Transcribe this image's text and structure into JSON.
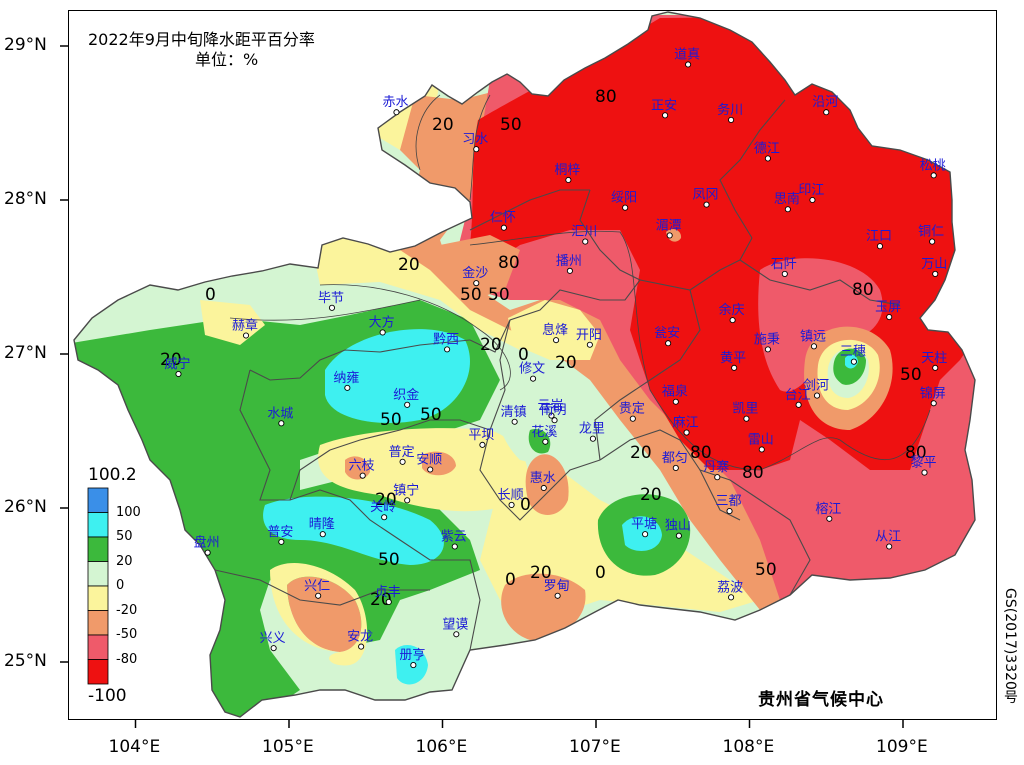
{
  "title": "2022年9月中旬降水距平百分率",
  "unit": "单位：%",
  "organization": "贵州省气候中心",
  "approval_number": "GS(2017)3320号",
  "lat_labels": [
    "29°N",
    "28°N",
    "27°N",
    "26°N",
    "25°N"
  ],
  "lon_labels": [
    "104°E",
    "105°E",
    "106°E",
    "107°E",
    "108°E",
    "109°E"
  ],
  "legend": {
    "max_label": "100.2",
    "min_label": "-100",
    "bins": [
      {
        "label": "100",
        "color": "#3a8fe8"
      },
      {
        "label": "50",
        "color": "#3ef0f0"
      },
      {
        "label": "20",
        "color": "#3cb93c"
      },
      {
        "label": "0",
        "color": "#d4f5d2"
      },
      {
        "label": "-20",
        "color": "#fbf49c"
      },
      {
        "label": "-50",
        "color": "#f09a6a"
      },
      {
        "label": "-80",
        "color": "#ef5a6a"
      },
      {
        "label": "",
        "color": "#ee1111"
      }
    ]
  },
  "colors": {
    "c_green": "#3cb93c",
    "c_cyan": "#3ef0f0",
    "c_lightgreen": "#d4f5d2",
    "c_yellow": "#fbf49c",
    "c_orange": "#f09a6a",
    "c_pink": "#ef5a6a",
    "c_red": "#ee1111",
    "c_boundary": "#4a4a4a"
  },
  "cities": [
    {
      "name": "赤水",
      "lon": 105.7,
      "lat": 28.57
    },
    {
      "name": "习水",
      "lon": 106.22,
      "lat": 28.33
    },
    {
      "name": "道真",
      "lon": 107.6,
      "lat": 28.88
    },
    {
      "name": "正安",
      "lon": 107.45,
      "lat": 28.55
    },
    {
      "name": "务川",
      "lon": 107.88,
      "lat": 28.52
    },
    {
      "name": "沿河",
      "lon": 108.5,
      "lat": 28.57
    },
    {
      "name": "桐梓",
      "lon": 106.82,
      "lat": 28.13
    },
    {
      "name": "绥阳",
      "lon": 107.19,
      "lat": 27.95
    },
    {
      "name": "凤冈",
      "lon": 107.72,
      "lat": 27.97
    },
    {
      "name": "德江",
      "lon": 108.12,
      "lat": 28.27
    },
    {
      "name": "印江",
      "lon": 108.41,
      "lat": 28.0
    },
    {
      "name": "思南",
      "lon": 108.25,
      "lat": 27.94
    },
    {
      "name": "松桃",
      "lon": 109.2,
      "lat": 28.16
    },
    {
      "name": "仁怀",
      "lon": 106.4,
      "lat": 27.82
    },
    {
      "name": "汇川",
      "lon": 106.93,
      "lat": 27.73
    },
    {
      "name": "湄潭",
      "lon": 107.48,
      "lat": 27.77
    },
    {
      "name": "江口",
      "lon": 108.85,
      "lat": 27.7
    },
    {
      "name": "铜仁",
      "lon": 109.19,
      "lat": 27.73
    },
    {
      "name": "金沙",
      "lon": 106.22,
      "lat": 27.46
    },
    {
      "name": "播州",
      "lon": 106.83,
      "lat": 27.54
    },
    {
      "name": "石阡",
      "lon": 108.23,
      "lat": 27.52
    },
    {
      "name": "万山",
      "lon": 109.21,
      "lat": 27.52
    },
    {
      "name": "毕节",
      "lon": 105.28,
      "lat": 27.3
    },
    {
      "name": "大方",
      "lon": 105.61,
      "lat": 27.14
    },
    {
      "name": "黔西",
      "lon": 106.03,
      "lat": 27.03
    },
    {
      "name": "息烽",
      "lon": 106.74,
      "lat": 27.09
    },
    {
      "name": "开阳",
      "lon": 106.96,
      "lat": 27.06
    },
    {
      "name": "余庆",
      "lon": 107.89,
      "lat": 27.22
    },
    {
      "name": "瓮安",
      "lon": 107.47,
      "lat": 27.07
    },
    {
      "name": "施秉",
      "lon": 108.12,
      "lat": 27.03
    },
    {
      "name": "镇远",
      "lon": 108.42,
      "lat": 27.05
    },
    {
      "name": "三穗",
      "lon": 108.68,
      "lat": 26.95
    },
    {
      "name": "玉屏",
      "lon": 108.91,
      "lat": 27.24
    },
    {
      "name": "天柱",
      "lon": 109.21,
      "lat": 26.91
    },
    {
      "name": "赫章",
      "lon": 104.72,
      "lat": 27.12
    },
    {
      "name": "威宁",
      "lon": 104.28,
      "lat": 26.87
    },
    {
      "name": "纳雍",
      "lon": 105.38,
      "lat": 26.78
    },
    {
      "name": "织金",
      "lon": 105.77,
      "lat": 26.67
    },
    {
      "name": "修文",
      "lon": 106.59,
      "lat": 26.84
    },
    {
      "name": "黄平",
      "lon": 107.9,
      "lat": 26.91
    },
    {
      "name": "台江",
      "lon": 108.32,
      "lat": 26.67
    },
    {
      "name": "剑河",
      "lon": 108.44,
      "lat": 26.73
    },
    {
      "name": "水城",
      "lon": 104.95,
      "lat": 26.55
    },
    {
      "name": "清镇",
      "lon": 106.47,
      "lat": 26.56
    },
    {
      "name": "云岩",
      "lon": 106.71,
      "lat": 26.6
    },
    {
      "name": "南明",
      "lon": 106.73,
      "lat": 26.57
    },
    {
      "name": "贵定",
      "lon": 107.24,
      "lat": 26.58
    },
    {
      "name": "福泉",
      "lon": 107.52,
      "lat": 26.69
    },
    {
      "name": "凯里",
      "lon": 107.98,
      "lat": 26.58
    },
    {
      "name": "麻江",
      "lon": 107.59,
      "lat": 26.49
    },
    {
      "name": "雷山",
      "lon": 108.08,
      "lat": 26.38
    },
    {
      "name": "锦屏",
      "lon": 109.2,
      "lat": 26.68
    },
    {
      "name": "平坝",
      "lon": 106.26,
      "lat": 26.41
    },
    {
      "name": "花溪",
      "lon": 106.67,
      "lat": 26.43
    },
    {
      "name": "龙里",
      "lon": 106.98,
      "lat": 26.45
    },
    {
      "name": "都匀",
      "lon": 107.52,
      "lat": 26.26
    },
    {
      "name": "丹寨",
      "lon": 107.79,
      "lat": 26.2
    },
    {
      "name": "黎平",
      "lon": 109.14,
      "lat": 26.23
    },
    {
      "name": "普定",
      "lon": 105.74,
      "lat": 26.3
    },
    {
      "name": "安顺",
      "lon": 105.92,
      "lat": 26.25
    },
    {
      "name": "六枝",
      "lon": 105.48,
      "lat": 26.21
    },
    {
      "name": "惠水",
      "lon": 106.66,
      "lat": 26.13
    },
    {
      "name": "镇宁",
      "lon": 105.77,
      "lat": 26.05
    },
    {
      "name": "长顺",
      "lon": 106.45,
      "lat": 26.02
    },
    {
      "name": "三都",
      "lon": 107.87,
      "lat": 25.98
    },
    {
      "name": "关岭",
      "lon": 105.62,
      "lat": 25.94
    },
    {
      "name": "普安",
      "lon": 104.95,
      "lat": 25.78
    },
    {
      "name": "晴隆",
      "lon": 105.22,
      "lat": 25.83
    },
    {
      "name": "紫云",
      "lon": 106.08,
      "lat": 25.75
    },
    {
      "name": "平塘",
      "lon": 107.32,
      "lat": 25.83
    },
    {
      "name": "独山",
      "lon": 107.54,
      "lat": 25.82
    },
    {
      "name": "榕江",
      "lon": 108.52,
      "lat": 25.93
    },
    {
      "name": "从江",
      "lon": 108.91,
      "lat": 25.75
    },
    {
      "name": "盘州",
      "lon": 104.47,
      "lat": 25.71
    },
    {
      "name": "兴仁",
      "lon": 105.19,
      "lat": 25.43
    },
    {
      "name": "贞丰",
      "lon": 105.65,
      "lat": 25.39
    },
    {
      "name": "望谟",
      "lon": 106.09,
      "lat": 25.18
    },
    {
      "name": "罗甸",
      "lon": 106.75,
      "lat": 25.43
    },
    {
      "name": "荔波",
      "lon": 107.88,
      "lat": 25.42
    },
    {
      "name": "兴义",
      "lon": 104.9,
      "lat": 25.09
    },
    {
      "name": "安龙",
      "lon": 105.47,
      "lat": 25.1
    },
    {
      "name": "册亨",
      "lon": 105.81,
      "lat": 24.98
    }
  ],
  "contour_labels": [
    "20",
    "50",
    "80",
    "50",
    "20",
    "80",
    "50",
    "0",
    "20",
    "0",
    "50",
    "20",
    "20",
    "20",
    "0",
    "20",
    "0",
    "50",
    "20",
    "50",
    "80",
    "50",
    "80",
    "80",
    "50",
    "20",
    "0",
    "20",
    "80"
  ]
}
